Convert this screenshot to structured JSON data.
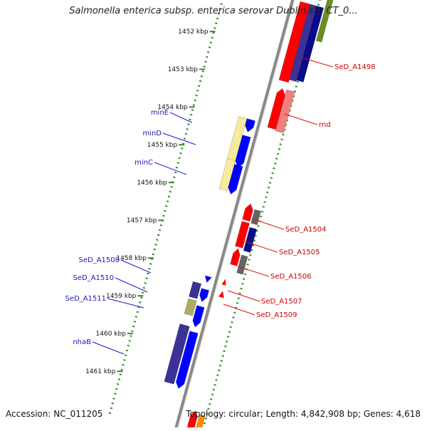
{
  "title": "Salmonella enterica subsp. enterica serovar Dublin str. CT_0...",
  "accession": "Accession: NC_011205",
  "summary": "Topology: circular; Length: 4,842,908 bp; Genes: 4,618",
  "colors": {
    "forward_gene": "#0000ff",
    "forward_dark": "#3c3296",
    "forward_tan": "#b4aa64",
    "forward_pale": "#f5eb9b",
    "reverse_gene": "#ff0000",
    "reverse_pink": "#f08080",
    "reverse_navy": "#0a0a8c",
    "reverse_grey": "#646464",
    "reverse_orange": "#ff8c00",
    "reverse_olive": "#6b8e23",
    "tick": "#3a8a2a",
    "backbone": "#999999"
  },
  "ticks": [
    {
      "label": "1452 kbp"
    },
    {
      "label": "1453 kbp"
    },
    {
      "label": "1454 kbp"
    },
    {
      "label": "1455 kbp"
    },
    {
      "label": "1456 kbp"
    },
    {
      "label": "1457 kbp"
    },
    {
      "label": "1458 kbp"
    },
    {
      "label": "1459 kbp"
    },
    {
      "label": "1460 kbp"
    },
    {
      "label": "1461 kbp"
    }
  ],
  "left_labels": [
    {
      "text": "minE"
    },
    {
      "text": "minD"
    },
    {
      "text": "minC"
    },
    {
      "text": "SeD_A1508"
    },
    {
      "text": "SeD_A1510"
    },
    {
      "text": "SeD_A1511"
    },
    {
      "text": "nhaB"
    }
  ],
  "right_labels": [
    {
      "text": "SeD_A1498"
    },
    {
      "text": "rnd"
    },
    {
      "text": "SeD_A1504"
    },
    {
      "text": "SeD_A1505"
    },
    {
      "text": "SeD_A1506"
    },
    {
      "text": "SeD_A1507"
    },
    {
      "text": "SeD_A1509"
    }
  ]
}
